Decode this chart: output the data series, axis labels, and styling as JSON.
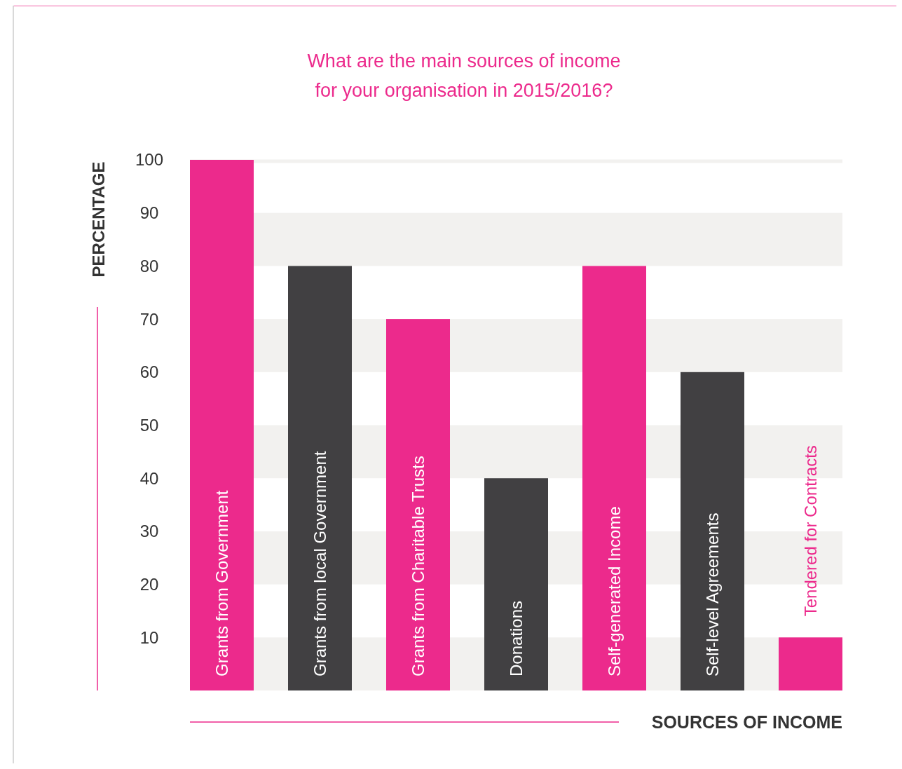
{
  "chart_data": {
    "type": "bar",
    "title": "What are the main sources of income\nfor your organisation in 2015/2016?",
    "xlabel": "SOURCES OF INCOME",
    "ylabel": "PERCENTAGE",
    "categories": [
      "Grants from Government",
      "Grants from local Government",
      "Grants from Charitable Trusts",
      "Donations",
      "Self-generated Income",
      "Self-level Agreements",
      "Tendered for Contracts"
    ],
    "values": [
      100,
      80,
      70,
      40,
      80,
      60,
      10
    ],
    "colors": [
      "#ec2a8c",
      "#414042",
      "#ec2a8c",
      "#414042",
      "#ec2a8c",
      "#414042",
      "#ec2a8c"
    ],
    "ylim": [
      0,
      100
    ],
    "yticks": [
      10,
      20,
      30,
      40,
      50,
      60,
      70,
      80,
      90,
      100
    ],
    "bands": [
      {
        "axis": "y",
        "from": 0,
        "to": 10,
        "color": "#f2f1ef"
      },
      {
        "axis": "y",
        "from": 20,
        "to": 30,
        "color": "#f2f1ef"
      },
      {
        "axis": "y",
        "from": 40,
        "to": 50,
        "color": "#f2f1ef"
      },
      {
        "axis": "y",
        "from": 60,
        "to": 70,
        "color": "#f2f1ef"
      },
      {
        "axis": "y",
        "from": 80,
        "to": 90,
        "color": "#f2f1ef"
      }
    ],
    "ref_lines": [
      {
        "axis": "y",
        "value": 100,
        "color": "#f2f1ef"
      }
    ]
  }
}
